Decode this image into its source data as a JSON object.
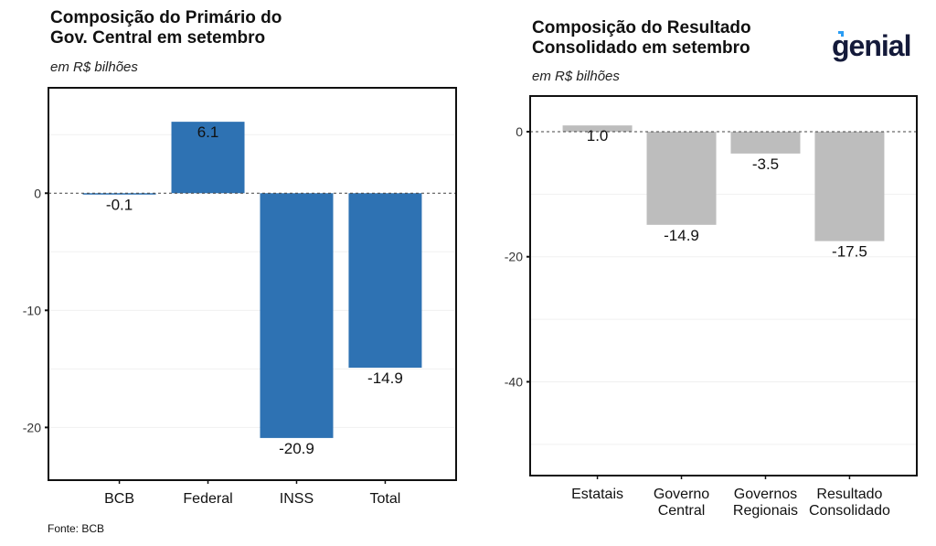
{
  "source": "Fonte: BCB",
  "logo_text": "genial",
  "colors": {
    "left_bar": "#2e72b3",
    "right_bar": "#bdbdbd"
  },
  "chart_data": [
    {
      "type": "bar",
      "title": "Composição do Primário do Gov. Central em setembro",
      "title_lines": [
        "Composição do Primário do",
        "Gov. Central em setembro"
      ],
      "subtitle": "em R$ bilhões",
      "categories": [
        "BCB",
        "Federal",
        "INSS",
        "Total"
      ],
      "values": [
        -0.1,
        6.1,
        -20.9,
        -14.9
      ],
      "labels": [
        "-0.1",
        "6.1",
        "-20.9",
        "-14.9"
      ],
      "ylim": [
        -24.5,
        9
      ],
      "yticks": [
        0,
        -10,
        -20
      ],
      "ytick_labels": [
        "0",
        "-10",
        "-20"
      ],
      "grid": true,
      "zero_line": "dashed"
    },
    {
      "type": "bar",
      "title": "Composição do Resultado Consolidado em setembro",
      "title_lines": [
        "Composição do Resultado",
        "Consolidado em setembro"
      ],
      "subtitle": "em R$ bilhões",
      "categories": [
        "Estatais",
        "Governo Central",
        "Governos Regionais",
        "Resultado Consolidado"
      ],
      "category_lines": [
        [
          "Estatais"
        ],
        [
          "Governo",
          "Central"
        ],
        [
          "Governos",
          "Regionais"
        ],
        [
          "Resultado",
          "Consolidado"
        ]
      ],
      "values": [
        1.0,
        -14.9,
        -3.5,
        -17.5
      ],
      "labels": [
        "1.0",
        "-14.9",
        "-3.5",
        "-17.5"
      ],
      "ylim": [
        -55,
        5.7
      ],
      "yticks": [
        0,
        -20,
        -40
      ],
      "ytick_labels": [
        "0",
        "-20",
        "-40"
      ],
      "grid": true,
      "zero_line": "dashed"
    }
  ]
}
